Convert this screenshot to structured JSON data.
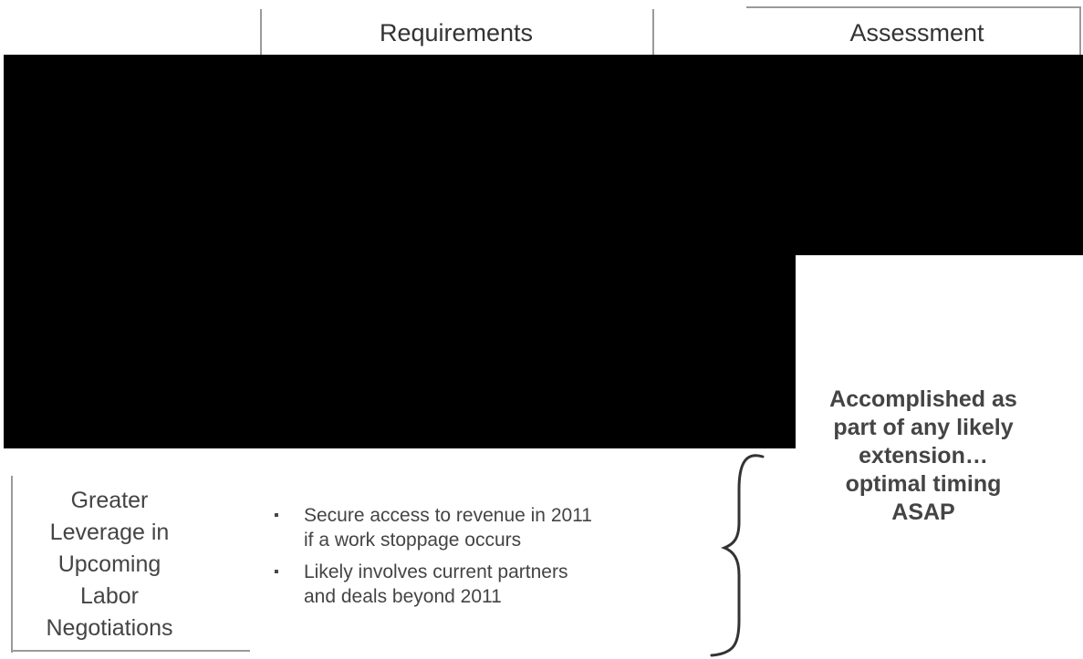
{
  "header": {
    "requirements": "Requirements",
    "assessment": "Assessment"
  },
  "row": {
    "label_lines": [
      "Greater",
      "Leverage in",
      "Upcoming",
      "Labor",
      "Negotiations"
    ],
    "bullets": [
      [
        "Secure access to revenue in 2011",
        "if a work stoppage occurs"
      ],
      [
        "Likely involves current partners",
        "and deals beyond 2011"
      ]
    ],
    "assessment_lines": [
      "Accomplished as",
      "part of any likely",
      "extension…",
      "optimal timing",
      "ASAP"
    ]
  },
  "redaction": {
    "color": "#000000"
  }
}
